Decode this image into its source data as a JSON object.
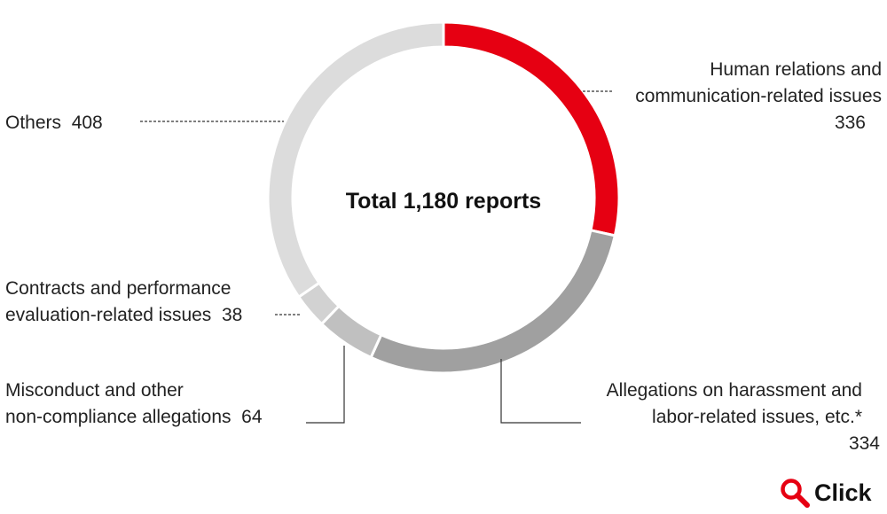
{
  "chart_data": {
    "type": "pie",
    "center_label": "Total 1,180 reports",
    "categories": [
      "Human relations and communication-related issues",
      "Allegations on harassment and labor-related issues, etc.*",
      "Misconduct and other non-compliance allegations",
      "Contracts and performance evaluation-related issues",
      "Others"
    ],
    "values": [
      336,
      334,
      64,
      38,
      408
    ],
    "colors": [
      "#e60012",
      "#a0a0a0",
      "#c0c0c0",
      "#d2d2d2",
      "#dcdcdc"
    ],
    "labels": {
      "human": {
        "line1": "Human relations and",
        "line2": "communication-related issues",
        "value": "336"
      },
      "harassment": {
        "line1": "Allegations on harassment and",
        "line2": "labor-related issues, etc.*",
        "value": "334"
      },
      "misconduct": {
        "line1": "Misconduct and other",
        "line2": "non-compliance allegations",
        "value": "64"
      },
      "contracts": {
        "line1": "Contracts and performance",
        "line2": "evaluation-related issues",
        "value": "38"
      },
      "others": {
        "line1": "Others",
        "value": "408"
      }
    }
  },
  "click_button": {
    "label": "Click",
    "icon": "magnifier-icon",
    "color": "#e60012"
  }
}
